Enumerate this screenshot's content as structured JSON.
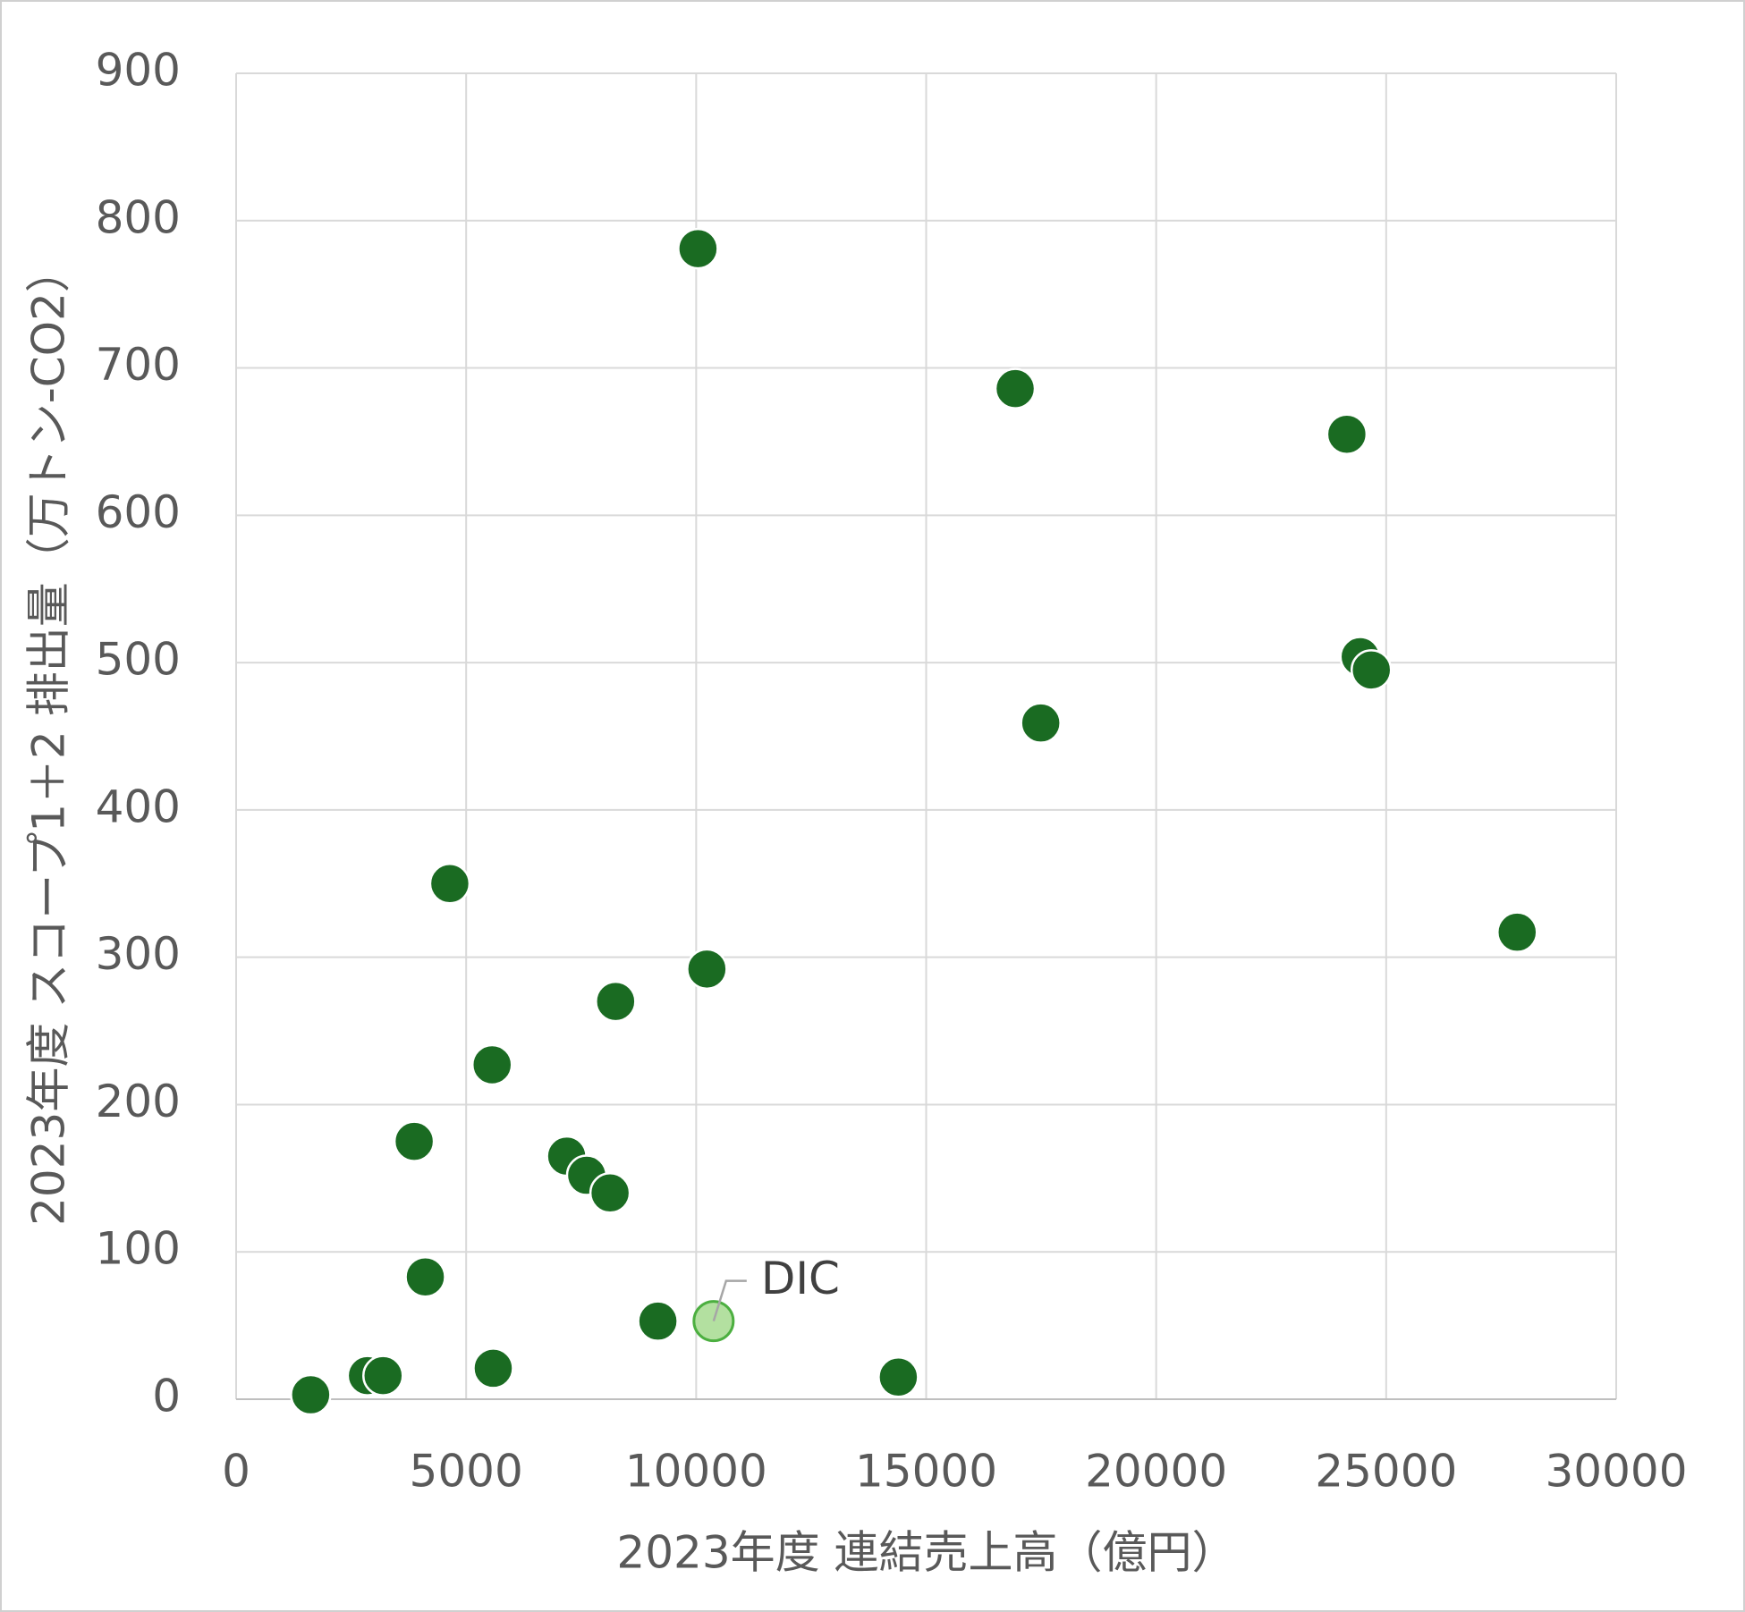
{
  "chart_data": {
    "type": "scatter",
    "xlabel": "2023年度 連結売上高（億円）",
    "ylabel": "2023年度 スコープ1＋2 排出量（万トン-CO2）",
    "xlim": [
      0,
      30000
    ],
    "xticks": [
      0,
      5000,
      10000,
      15000,
      20000,
      25000,
      30000
    ],
    "ylim": [
      0,
      900
    ],
    "yticks": [
      0,
      100,
      200,
      300,
      400,
      500,
      600,
      700,
      800,
      900
    ],
    "grid": true,
    "series": [
      {
        "color": "#1a6b22",
        "x": [
          10040,
          16935,
          24145,
          24435,
          24677,
          17492,
          27847,
          4645,
          10234,
          8250,
          5565,
          3871,
          7186,
          7621,
          8129,
          4113,
          9169,
          5589,
          14395,
          2855,
          3194,
          1621
        ],
        "values": [
          781,
          686,
          655,
          504,
          495,
          459,
          317,
          350,
          292,
          270,
          227,
          175,
          165,
          152,
          140,
          83,
          53,
          21,
          15,
          16,
          16,
          3
        ]
      },
      {
        "name": "DIC",
        "color": "#b3e0a0",
        "x": [
          10379
        ],
        "values": [
          53
        ]
      }
    ]
  }
}
